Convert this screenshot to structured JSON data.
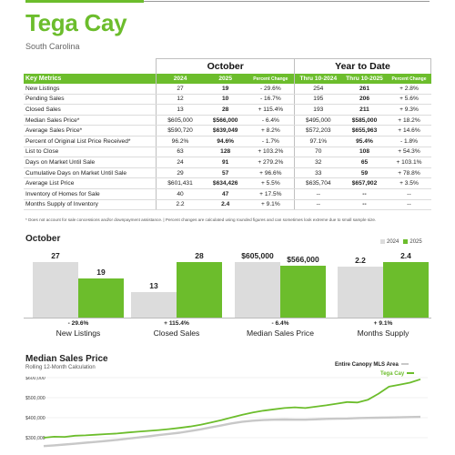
{
  "header": {
    "title": "Tega Cay",
    "subtitle": "South Carolina"
  },
  "colors": {
    "accent": "#6cbd2c",
    "bar_2024": "#dcdcdc",
    "line_area": "#c8c8c8"
  },
  "table": {
    "group_october": "October",
    "group_ytd": "Year to Date",
    "columns": [
      "Key Metrics",
      "2024",
      "2025",
      "Percent Change",
      "Thru 10-2024",
      "Thru 10-2025",
      "Percent Change"
    ],
    "rows": [
      [
        "New Listings",
        "27",
        "19",
        "- 29.6%",
        "254",
        "261",
        "+ 2.8%"
      ],
      [
        "Pending Sales",
        "12",
        "10",
        "- 16.7%",
        "195",
        "206",
        "+ 5.6%"
      ],
      [
        "Closed Sales",
        "13",
        "28",
        "+ 115.4%",
        "193",
        "211",
        "+ 9.3%"
      ],
      [
        "Median Sales Price*",
        "$605,000",
        "$566,000",
        "- 6.4%",
        "$495,000",
        "$585,000",
        "+ 18.2%"
      ],
      [
        "Average Sales Price*",
        "$590,720",
        "$639,049",
        "+ 8.2%",
        "$572,203",
        "$655,963",
        "+ 14.6%"
      ],
      [
        "Percent of Original List Price Received*",
        "96.2%",
        "94.6%",
        "- 1.7%",
        "97.1%",
        "95.4%",
        "- 1.8%"
      ],
      [
        "List to Close",
        "63",
        "128",
        "+ 103.2%",
        "70",
        "108",
        "+ 54.3%"
      ],
      [
        "Days on Market Until Sale",
        "24",
        "91",
        "+ 279.2%",
        "32",
        "65",
        "+ 103.1%"
      ],
      [
        "Cumulative Days on Market Until Sale",
        "29",
        "57",
        "+ 96.6%",
        "33",
        "59",
        "+ 78.8%"
      ],
      [
        "Average List Price",
        "$601,431",
        "$634,426",
        "+ 5.5%",
        "$635,704",
        "$657,902",
        "+ 3.5%"
      ],
      [
        "Inventory of Homes for Sale",
        "40",
        "47",
        "+ 17.5%",
        "--",
        "--",
        "--"
      ],
      [
        "Months Supply of Inventory",
        "2.2",
        "2.4",
        "+ 9.1%",
        "--",
        "--",
        "--"
      ]
    ],
    "footnote": "* Does not account for sale concessions and/or downpayment assistance.  |  Percent changes are calculated using rounded figures and can sometimes look extreme due to small sample size."
  },
  "october_chart": {
    "title": "October",
    "legend": [
      "2024",
      "2025"
    ]
  },
  "chart_data": [
    {
      "type": "bar",
      "title": "October",
      "categories": [
        "New Listings",
        "Closed Sales",
        "Median Sales Price",
        "Months Supply"
      ],
      "series": [
        {
          "name": "2024",
          "values": [
            27,
            13,
            605000,
            2.2
          ],
          "labels": [
            "27",
            "13",
            "$605,000",
            "2.2"
          ]
        },
        {
          "name": "2025",
          "values": [
            19,
            28,
            566000,
            2.4
          ],
          "labels": [
            "19",
            "28",
            "$566,000",
            "2.4"
          ]
        }
      ],
      "percent_change": [
        "- 29.6%",
        "+ 115.4%",
        "- 6.4%",
        "+ 9.1%"
      ]
    },
    {
      "type": "line",
      "title": "Median Sales Price",
      "subtitle": "Rolling 12-Month Calculation",
      "yticks": [
        "$600,000",
        "$500,000",
        "$400,000",
        "$300,000"
      ],
      "ylim": [
        250000,
        620000
      ],
      "series": [
        {
          "name": "Entire Canopy MLS Area",
          "values": [
            258000,
            262000,
            266000,
            270000,
            275000,
            279000,
            284000,
            289000,
            295000,
            301000,
            307000,
            313000,
            319000,
            325000,
            333000,
            342000,
            352000,
            362000,
            372000,
            380000,
            385000,
            388000,
            390000,
            391000,
            390000,
            390000,
            392000,
            394000,
            395000,
            396000,
            398000,
            399000,
            400000,
            401000,
            402000,
            403000,
            404000
          ]
        },
        {
          "name": "Tega Cay",
          "values": [
            300000,
            305000,
            304000,
            310000,
            312000,
            315000,
            318000,
            321000,
            326000,
            330000,
            334000,
            338000,
            343000,
            349000,
            356000,
            365000,
            376000,
            388000,
            402000,
            415000,
            426000,
            435000,
            442000,
            448000,
            452000,
            448000,
            455000,
            462000,
            470000,
            478000,
            476000,
            490000,
            520000,
            555000,
            565000,
            575000,
            592000
          ]
        }
      ]
    }
  ],
  "msp_chart": {
    "title": "Median Sales Price",
    "subtitle": "Rolling 12-Month Calculation",
    "legend_area": "Entire Canopy MLS Area",
    "legend_local": "Tega Cay"
  }
}
